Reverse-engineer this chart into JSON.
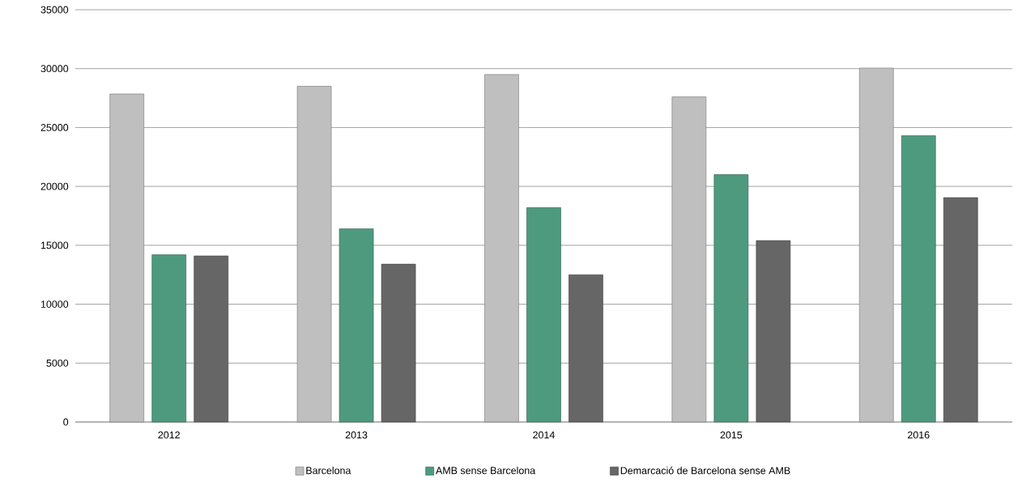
{
  "chart_data": {
    "type": "bar",
    "categories": [
      "2012",
      "2013",
      "2014",
      "2015",
      "2016"
    ],
    "series": [
      {
        "name": "Barcelona",
        "color": "#bfbfbf",
        "values": [
          27850,
          28500,
          29500,
          27600,
          30050
        ]
      },
      {
        "name": "AMB sense Barcelona",
        "color": "#4e9a7e",
        "values": [
          14200,
          16400,
          18200,
          21000,
          24300
        ]
      },
      {
        "name": "Demarcació de Barcelona sense AMB",
        "color": "#666666",
        "values": [
          14100,
          13400,
          12500,
          15400,
          19050
        ]
      }
    ],
    "ylim": [
      0,
      35000
    ],
    "yticks": [
      0,
      5000,
      10000,
      15000,
      20000,
      25000,
      30000,
      35000
    ],
    "grid": "y",
    "legend": "bottom"
  }
}
